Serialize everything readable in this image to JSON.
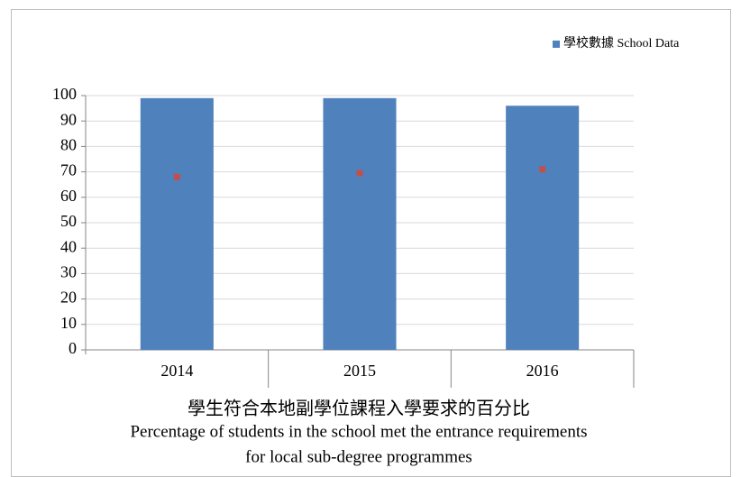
{
  "chart_data": {
    "type": "bar",
    "title": [
      "學生符合本地副學位課程入學要求的百分比",
      "Percentage of students in the school met the entrance requirements",
      "for local sub-degree programmes"
    ],
    "categories": [
      "2014",
      "2015",
      "2016"
    ],
    "series": [
      {
        "name": "學校數據 School Data",
        "color": "#4f81bd",
        "values": [
          99,
          99,
          96
        ]
      },
      {
        "type": "point",
        "color": "#c0504d",
        "values": [
          68,
          69.5,
          71
        ]
      }
    ],
    "ylim": [
      0,
      100
    ],
    "yticks": [
      0,
      10,
      20,
      30,
      40,
      50,
      60,
      70,
      80,
      90,
      100
    ],
    "grid": true,
    "legend": "top-right"
  }
}
